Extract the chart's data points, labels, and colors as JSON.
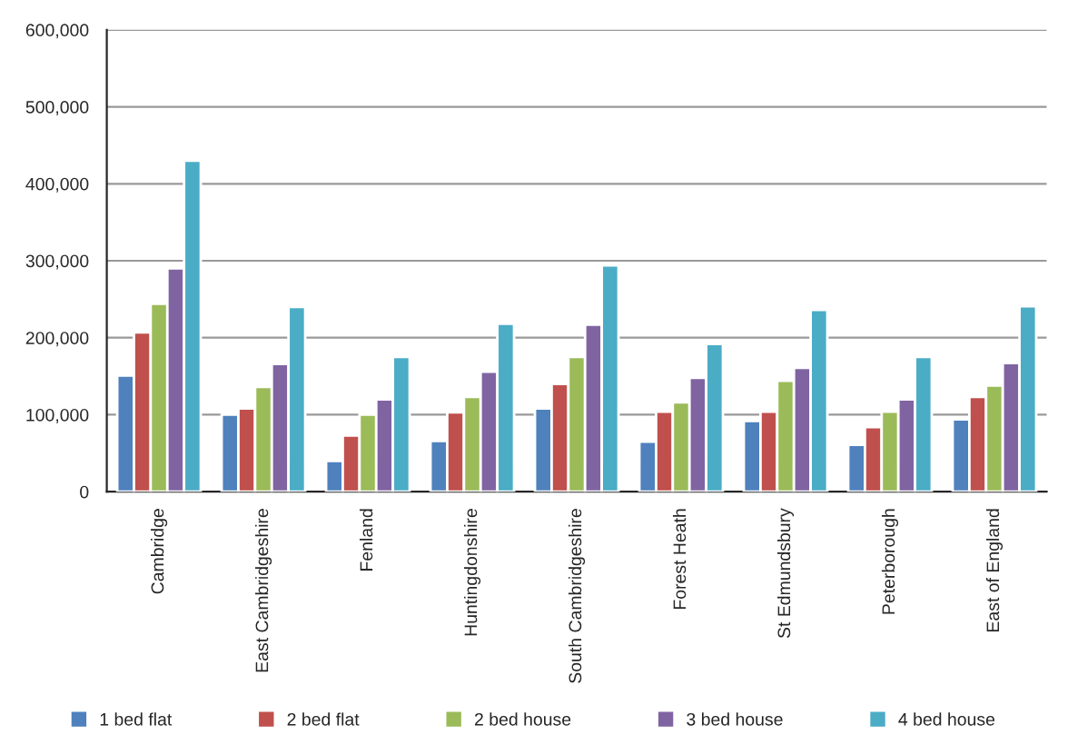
{
  "chart_data": {
    "type": "bar",
    "categories": [
      "Cambridge",
      "East Cambridgeshire",
      "Fenland",
      "Huntingdonshire",
      "South Cambridgeshire",
      "Forest Heath",
      "St Edmundsbury",
      "Peterborough",
      "East of England"
    ],
    "series": [
      {
        "name": "1 bed flat",
        "color": "#4f81bd",
        "values": [
          151000,
          100000,
          40000,
          66000,
          108000,
          65000,
          92000,
          61000,
          94000
        ]
      },
      {
        "name": "2 bed flat",
        "color": "#c0504d",
        "values": [
          207000,
          108000,
          73000,
          103000,
          140000,
          104000,
          104000,
          84000,
          123000
        ]
      },
      {
        "name": "2 bed house",
        "color": "#9bbb59",
        "values": [
          244000,
          136000,
          100000,
          123000,
          175000,
          116000,
          144000,
          104000,
          138000
        ]
      },
      {
        "name": "3 bed house",
        "color": "#8064a2",
        "values": [
          290000,
          166000,
          120000,
          156000,
          217000,
          148000,
          161000,
          120000,
          167000
        ]
      },
      {
        "name": "4 bed house",
        "color": "#4bacc6",
        "values": [
          430000,
          240000,
          175000,
          218000,
          294000,
          192000,
          236000,
          175000,
          241000
        ]
      }
    ],
    "ylim": [
      0,
      600000
    ],
    "yticks": [
      {
        "value": 0,
        "label": "0"
      },
      {
        "value": 100000,
        "label": "100,000"
      },
      {
        "value": 200000,
        "label": "200,000"
      },
      {
        "value": 300000,
        "label": "300,000"
      },
      {
        "value": 400000,
        "label": "400,000"
      },
      {
        "value": 500000,
        "label": "500,000"
      },
      {
        "value": 600000,
        "label": "600,000"
      }
    ],
    "grid": "y",
    "legend": "bottom"
  }
}
